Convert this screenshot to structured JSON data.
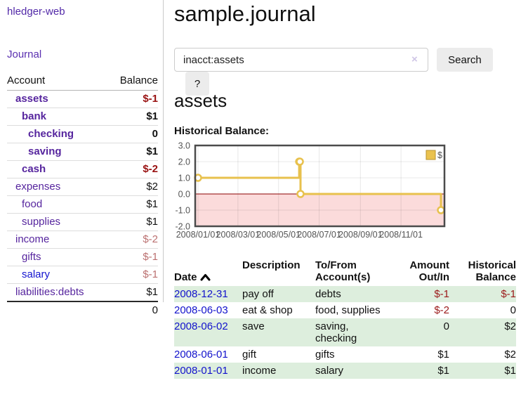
{
  "sidebar": {
    "brand": "hledger-web",
    "nav": {
      "journal": "Journal"
    },
    "table": {
      "account_header": "Account",
      "balance_header": "Balance",
      "rows": [
        {
          "name": "assets",
          "depth": 1,
          "in_context": true,
          "balance": "$-1",
          "negative": "strong"
        },
        {
          "name": "bank",
          "depth": 2,
          "in_context": true,
          "balance": "$1"
        },
        {
          "name": "checking",
          "depth": 3,
          "in_context": true,
          "balance": "0"
        },
        {
          "name": "saving",
          "depth": 3,
          "in_context": true,
          "balance": "$1"
        },
        {
          "name": "cash",
          "depth": 2,
          "in_context": true,
          "balance": "$-2",
          "negative": "strong"
        },
        {
          "name": "expenses",
          "depth": 1,
          "balance": "$2"
        },
        {
          "name": "food",
          "depth": 2,
          "balance": "$1"
        },
        {
          "name": "supplies",
          "depth": 2,
          "balance": "$1"
        },
        {
          "name": "income",
          "depth": 1,
          "balance": "$-2",
          "negative": "muted"
        },
        {
          "name": "gifts",
          "depth": 2,
          "balance": "$-1",
          "negative": "muted"
        },
        {
          "name": "salary",
          "depth": 2,
          "balance": "$-1",
          "negative": "muted",
          "unvisited": true
        },
        {
          "name": "liabilities:debts",
          "depth": 1,
          "balance": "$1"
        }
      ],
      "total": "0"
    }
  },
  "header": {
    "title": "sample.journal"
  },
  "search": {
    "value": "inacct:assets",
    "clear_icon": "×",
    "search_label": "Search",
    "help_label": "?"
  },
  "account_page": {
    "heading": "assets",
    "chart_label": "Historical Balance:"
  },
  "chart_data": {
    "type": "line",
    "step": true,
    "title": "Historical Balance of assets",
    "series": [
      {
        "name": "$",
        "color": "#e8c14d",
        "points": [
          [
            "2008-01-01",
            1
          ],
          [
            "2008-06-01",
            2
          ],
          [
            "2008-06-02",
            2
          ],
          [
            "2008-06-03",
            0
          ],
          [
            "2008-12-31",
            -1
          ]
        ]
      }
    ],
    "xlim": [
      "2008-01-01",
      "2008-12-31"
    ],
    "ylim": [
      -2,
      3
    ],
    "x_ticks": [
      "2008/01/01",
      "2008/03/01",
      "2008/05/01",
      "2008/07/01",
      "2008/09/01",
      "2008/11/01"
    ],
    "y_ticks": [
      3,
      2,
      1,
      0,
      -1,
      -2
    ],
    "grid": true,
    "negative_region_color": "#fbdbdb",
    "zero_line_color": "#8b0000",
    "border_color": "#4b4b4b",
    "legend": {
      "position": "top-right",
      "items": [
        {
          "label": "$",
          "color": "#eac24f"
        }
      ]
    }
  },
  "transactions": {
    "headers": [
      {
        "label": "Date",
        "sorted": "asc"
      },
      {
        "label": "Description"
      },
      {
        "label": "To/From\nAccount(s)"
      },
      {
        "label": "Amount\nOut/In",
        "align": "right"
      },
      {
        "label": "Historical\nBalance",
        "align": "right"
      }
    ],
    "rows": [
      {
        "date": "2008-12-31",
        "description": "pay off",
        "accounts": "debts",
        "amount": "$-1",
        "amount_negative": true,
        "balance": "$-1",
        "balance_negative": true
      },
      {
        "date": "2008-06-03",
        "description": "eat & shop",
        "accounts": "food, supplies",
        "amount": "$-2",
        "amount_negative": true,
        "balance": "0"
      },
      {
        "date": "2008-06-02",
        "description": "save",
        "accounts": "saving,\nchecking",
        "amount": "0",
        "balance": "$2"
      },
      {
        "date": "2008-06-01",
        "description": "gift",
        "accounts": "gifts",
        "amount": "$1",
        "balance": "$2"
      },
      {
        "date": "2008-01-01",
        "description": "income",
        "accounts": "salary",
        "amount": "$1",
        "balance": "$1"
      }
    ]
  }
}
